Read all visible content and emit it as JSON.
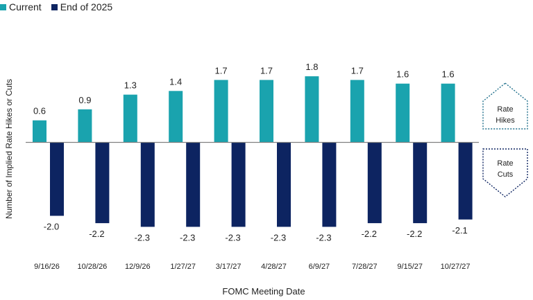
{
  "legend": {
    "series_1": "Current",
    "series_2": "End of 2025"
  },
  "side_labels": {
    "hikes_line1": "Rate",
    "hikes_line2": "Hikes",
    "cuts_line1": "Rate",
    "cuts_line2": "Cuts"
  },
  "colors": {
    "current": "#1AA3AE",
    "end_2025": "#0D2461",
    "arrow_stroke": "#1F6F8B",
    "axis": "#7f7f7f"
  },
  "chart_data": {
    "type": "bar",
    "xlabel": "FOMC Meeting Date",
    "ylabel": "Number of Implied Rate Hikes or Cuts",
    "categories": [
      "9/16/26",
      "10/28/26",
      "12/9/26",
      "1/27/27",
      "3/17/27",
      "4/28/27",
      "6/9/27",
      "7/28/27",
      "9/15/27",
      "10/27/27"
    ],
    "series": [
      {
        "name": "Current",
        "values": [
          0.6,
          0.9,
          1.3,
          1.4,
          1.7,
          1.7,
          1.8,
          1.7,
          1.6,
          1.6
        ]
      },
      {
        "name": "End of 2025",
        "values": [
          -2.0,
          -2.2,
          -2.3,
          -2.3,
          -2.3,
          -2.3,
          -2.3,
          -2.2,
          -2.2,
          -2.1
        ]
      }
    ],
    "value_labels": [
      [
        "0.6",
        "0.9",
        "1.3",
        "1.4",
        "1.7",
        "1.7",
        "1.8",
        "1.7",
        "1.6",
        "1.6"
      ],
      [
        "-2.0",
        "-2.2",
        "-2.3",
        "-2.3",
        "-2.3",
        "-2.3",
        "-2.3",
        "-2.2",
        "-2.2",
        "-2.1"
      ]
    ],
    "ylim": [
      -2.6,
      2.0
    ],
    "grid": false,
    "legend_position": "top-left"
  }
}
